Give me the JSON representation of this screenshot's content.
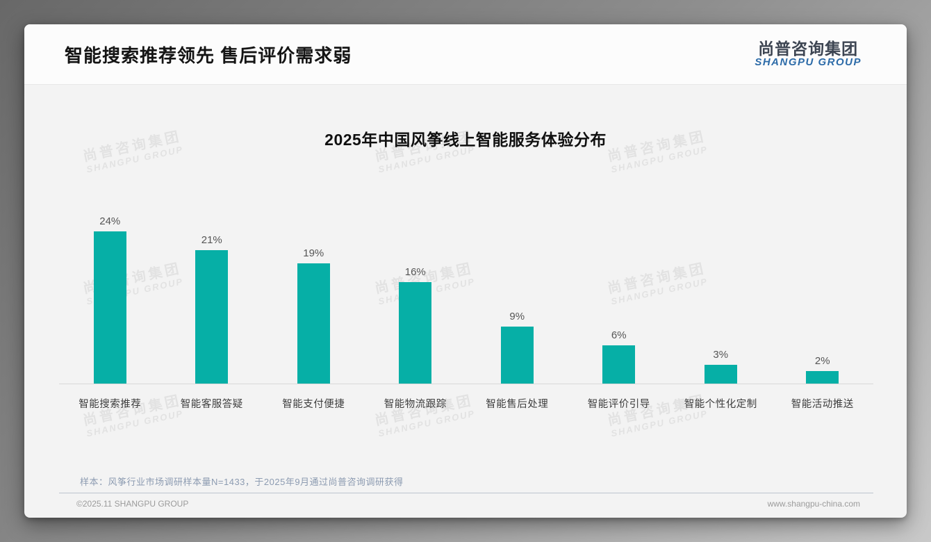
{
  "header": {
    "title": "智能搜索推荐领先 售后评价需求弱",
    "logo_cn": "尚普咨询集团",
    "logo_en": "SHANGPU GROUP"
  },
  "watermark": {
    "cn": "尚普咨询集团",
    "en": "SHANGPU GROUP"
  },
  "chart_data": {
    "type": "bar",
    "title": "2025年中国风筝线上智能服务体验分布",
    "categories": [
      "智能搜索推荐",
      "智能客服答疑",
      "智能支付便捷",
      "智能物流跟踪",
      "智能售后处理",
      "智能评价引导",
      "智能个性化定制",
      "智能活动推送"
    ],
    "values": [
      24,
      21,
      19,
      16,
      9,
      6,
      3,
      2
    ],
    "value_labels": [
      "24%",
      "21%",
      "19%",
      "16%",
      "9%",
      "6%",
      "3%",
      "2%"
    ],
    "bar_color": "#06AFA6",
    "xlabel": "",
    "ylabel": "",
    "ylim": [
      0,
      26
    ],
    "grid": false,
    "legend": "none",
    "data_label_position": "above"
  },
  "footer": {
    "note": "样本：风筝行业市场调研样本量N=1433，于2025年9月通过尚普咨询调研获得",
    "copyright": "©2025.11 SHANGPU GROUP",
    "website": "www.shangpu-china.com"
  }
}
